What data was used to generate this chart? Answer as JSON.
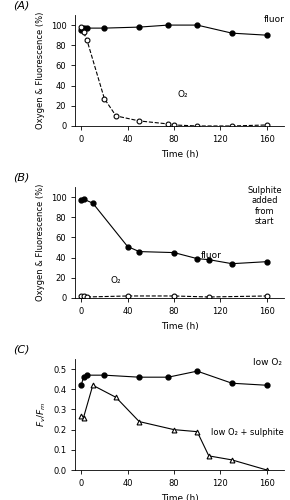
{
  "A_fluor_x": [
    0,
    2,
    5,
    20,
    50,
    75,
    100,
    130,
    160
  ],
  "A_fluor_y": [
    95,
    97,
    97,
    97,
    98,
    100,
    100,
    92,
    90
  ],
  "A_o2_x": [
    0,
    2,
    5,
    20,
    30,
    50,
    75,
    80,
    100,
    130,
    160
  ],
  "A_o2_y": [
    98,
    93,
    85,
    27,
    10,
    5,
    2,
    1,
    0,
    0,
    1
  ],
  "B_fluor_x": [
    0,
    2,
    10,
    40,
    50,
    80,
    100,
    110,
    130,
    160
  ],
  "B_fluor_y": [
    97,
    98,
    94,
    51,
    46,
    45,
    39,
    38,
    34,
    36
  ],
  "B_o2_x": [
    0,
    2,
    5,
    40,
    80,
    110,
    160
  ],
  "B_o2_y": [
    2,
    2,
    1,
    2,
    2,
    1,
    2
  ],
  "C_lowO2_x": [
    0,
    2,
    5,
    20,
    50,
    75,
    100,
    130,
    160
  ],
  "C_lowO2_y": [
    0.42,
    0.46,
    0.47,
    0.47,
    0.46,
    0.46,
    0.49,
    0.43,
    0.42
  ],
  "C_sulphite_x": [
    0,
    2,
    10,
    30,
    50,
    80,
    100,
    110,
    130,
    160
  ],
  "C_sulphite_y": [
    0.27,
    0.26,
    0.42,
    0.36,
    0.24,
    0.2,
    0.19,
    0.07,
    0.05,
    0.0
  ],
  "A_ylabel": "Oxygen & Fluorescence (%)",
  "B_ylabel": "Oxygen & Fluorescence (%)",
  "C_ylabel": "F_v/F_m",
  "xlabel": "Time (h)",
  "A_ylim": [
    0,
    110
  ],
  "B_ylim": [
    0,
    110
  ],
  "C_ylim": [
    0.0,
    0.55
  ],
  "xlim": [
    -5,
    175
  ],
  "A_yticks": [
    0,
    20,
    40,
    60,
    80,
    100
  ],
  "B_yticks": [
    0,
    20,
    40,
    60,
    80,
    100
  ],
  "C_yticks": [
    0.0,
    0.1,
    0.2,
    0.3,
    0.4,
    0.5
  ],
  "xticks": [
    0,
    40,
    80,
    120,
    160
  ]
}
